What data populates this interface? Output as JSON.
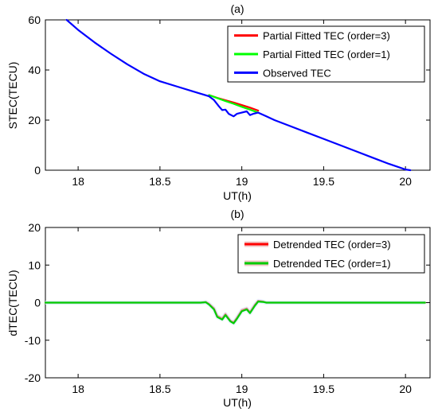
{
  "chart_data": [
    {
      "type": "line",
      "title": "(a)",
      "xlabel": "UT(h)",
      "ylabel": "STEC(TECU)",
      "xlim": [
        17.8,
        20.15
      ],
      "ylim": [
        0,
        60
      ],
      "xticks": [
        18,
        18.5,
        19,
        19.5,
        20
      ],
      "xtick_labels": [
        "18",
        "18.5",
        "19",
        "19.5",
        "20"
      ],
      "yticks": [
        0,
        20,
        40,
        60
      ],
      "ytick_labels": [
        "0",
        "20",
        "40",
        "60"
      ],
      "grid": false,
      "legend_position": "top-right",
      "series": [
        {
          "name": "Partial Fitted TEC (order=3)",
          "color": "#ff0000",
          "x": [
            18.8,
            18.85,
            18.9,
            18.95,
            19.0,
            19.05,
            19.1
          ],
          "y": [
            30.0,
            28.9,
            27.9,
            27.0,
            26.0,
            25.0,
            23.8
          ]
        },
        {
          "name": "Partial Fitted TEC (order=1)",
          "color": "#00ff00",
          "x": [
            18.8,
            18.85,
            18.9,
            18.95,
            19.0,
            19.05,
            19.1
          ],
          "y": [
            30.0,
            28.8,
            27.6,
            26.5,
            25.3,
            24.2,
            23.0
          ]
        },
        {
          "name": "Observed TEC",
          "color": "#0000ff",
          "x": [
            17.93,
            18.0,
            18.1,
            18.2,
            18.3,
            18.4,
            18.5,
            18.6,
            18.7,
            18.75,
            18.8,
            18.83,
            18.86,
            18.88,
            18.9,
            18.92,
            18.95,
            18.97,
            19.0,
            19.03,
            19.05,
            19.07,
            19.1,
            19.15,
            19.2,
            19.3,
            19.4,
            19.5,
            19.6,
            19.7,
            19.8,
            19.9,
            20.0,
            20.03
          ],
          "y": [
            60.0,
            56.0,
            51.0,
            46.5,
            42.3,
            38.5,
            35.5,
            33.5,
            31.5,
            30.5,
            29.5,
            28.0,
            25.5,
            24.0,
            24.2,
            22.5,
            21.5,
            22.5,
            23.0,
            23.5,
            22.0,
            22.5,
            23.0,
            21.5,
            20.0,
            17.5,
            15.0,
            12.5,
            10.0,
            7.5,
            5.0,
            2.5,
            0.3,
            0.0
          ]
        }
      ]
    },
    {
      "type": "line",
      "title": "(b)",
      "xlabel": "UT(h)",
      "ylabel": "dTEC(TECU)",
      "xlim": [
        17.8,
        20.15
      ],
      "ylim": [
        -20,
        20
      ],
      "xticks": [
        18,
        18.5,
        19,
        19.5,
        20
      ],
      "xtick_labels": [
        "18",
        "18.5",
        "19",
        "19.5",
        "20"
      ],
      "yticks": [
        -20,
        -10,
        0,
        10,
        20
      ],
      "ytick_labels": [
        "-20",
        "-10",
        "0",
        "10",
        "20"
      ],
      "grid": false,
      "legend_position": "top-right",
      "series": [
        {
          "name": "Detrended TEC (order=3)",
          "color": "#ff0000",
          "x": [
            17.8,
            18.75,
            18.78,
            18.8,
            18.83,
            18.85,
            18.88,
            18.9,
            18.93,
            18.95,
            18.97,
            19.0,
            19.03,
            19.05,
            19.08,
            19.1,
            19.13,
            19.15,
            20.12
          ],
          "y": [
            0.0,
            0.0,
            0.2,
            -0.3,
            -1.5,
            -3.5,
            -4.2,
            -3.0,
            -4.8,
            -5.2,
            -4.0,
            -2.0,
            -1.5,
            -2.5,
            -0.5,
            0.5,
            0.3,
            0.0,
            0.0
          ]
        },
        {
          "name": "Detrended TEC (order=1)",
          "color": "#00cc00",
          "x": [
            17.8,
            18.75,
            18.78,
            18.8,
            18.83,
            18.85,
            18.88,
            18.9,
            18.93,
            18.95,
            18.97,
            19.0,
            19.03,
            19.05,
            19.08,
            19.1,
            19.13,
            19.15,
            20.12
          ],
          "y": [
            0.0,
            0.0,
            0.1,
            -0.5,
            -1.8,
            -3.8,
            -4.5,
            -3.3,
            -5.0,
            -5.5,
            -4.3,
            -2.3,
            -1.8,
            -2.8,
            -0.8,
            0.3,
            0.2,
            0.0,
            0.0
          ]
        }
      ]
    }
  ]
}
